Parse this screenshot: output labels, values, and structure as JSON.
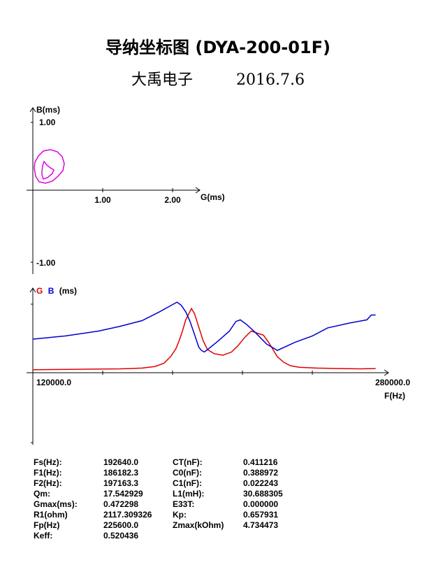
{
  "header": {
    "title": "导纳坐标图 (DYA-200-01F)",
    "company": "大禹电子",
    "date": "2016.7.6"
  },
  "chart_data": [
    {
      "type": "scatter",
      "title": "",
      "xlabel": "G(ms)",
      "ylabel": "B(ms)",
      "xlim": [
        -0.02,
        2.4
      ],
      "ylim": [
        -1.1,
        1.15
      ],
      "x_ticks": [
        "1.00",
        "2.00"
      ],
      "y_ticks": [
        "1.00",
        "-1.00"
      ],
      "grid": false,
      "series": [
        {
          "color": "#e000e0",
          "points": [
            [
              0.02,
              0.32
            ],
            [
              0.04,
              0.2
            ],
            [
              0.09,
              0.12
            ],
            [
              0.18,
              0.1
            ],
            [
              0.28,
              0.13
            ],
            [
              0.36,
              0.2
            ],
            [
              0.43,
              0.28
            ],
            [
              0.45,
              0.38
            ],
            [
              0.42,
              0.48
            ],
            [
              0.35,
              0.55
            ],
            [
              0.25,
              0.58
            ],
            [
              0.15,
              0.56
            ],
            [
              0.08,
              0.49
            ],
            [
              0.03,
              0.4
            ],
            [
              0.02,
              0.32
            ]
          ]
        },
        {
          "color": "#e000e0",
          "points": [
            [
              0.13,
              0.22
            ],
            [
              0.15,
              0.16
            ],
            [
              0.21,
              0.18
            ],
            [
              0.28,
              0.24
            ],
            [
              0.3,
              0.29
            ],
            [
              0.25,
              0.32
            ],
            [
              0.2,
              0.36
            ],
            [
              0.16,
              0.41
            ],
            [
              0.14,
              0.35
            ],
            [
              0.13,
              0.27
            ],
            [
              0.13,
              0.22
            ]
          ]
        }
      ]
    },
    {
      "type": "line",
      "title": "",
      "legend": [
        "G",
        "B",
        "(ms)"
      ],
      "xlabel": "F(Hz)",
      "xlim": [
        120000,
        280000
      ],
      "x_ticks": [
        "120000.0",
        "280000.0"
      ],
      "ylim": [
        0,
        1
      ],
      "grid": false,
      "series": [
        {
          "name": "G",
          "color": "#e00000",
          "x": [
            120000,
            140000,
            160000,
            170000,
            176000,
            180000,
            183000,
            185500,
            187000,
            188500,
            190000,
            192640,
            194000,
            196000,
            198000,
            200000,
            203000,
            207000,
            211000,
            214000,
            217000,
            220000,
            225600,
            228000,
            230000,
            232000,
            235000,
            238000,
            242000,
            250000,
            260000,
            270000,
            277000
          ],
          "y": [
            0.02,
            0.025,
            0.03,
            0.04,
            0.06,
            0.1,
            0.18,
            0.28,
            0.38,
            0.5,
            0.64,
            0.78,
            0.72,
            0.55,
            0.38,
            0.27,
            0.22,
            0.2,
            0.24,
            0.32,
            0.42,
            0.5,
            0.45,
            0.36,
            0.27,
            0.18,
            0.11,
            0.07,
            0.05,
            0.04,
            0.035,
            0.03,
            0.035
          ]
        },
        {
          "name": "B",
          "color": "#0000d0",
          "x": [
            120000,
            135000,
            150000,
            160000,
            170000,
            178000,
            182000,
            186000,
            188000,
            190000,
            192000,
            194000,
            196000,
            197200,
            198500,
            200000,
            205000,
            210000,
            213000,
            215000,
            218000,
            222000,
            227000,
            232000,
            240000,
            248000,
            255000,
            265000,
            273000,
            275000,
            277000
          ],
          "y": [
            0.4,
            0.44,
            0.5,
            0.56,
            0.63,
            0.74,
            0.8,
            0.86,
            0.82,
            0.74,
            0.62,
            0.46,
            0.3,
            0.26,
            0.24,
            0.27,
            0.38,
            0.5,
            0.62,
            0.64,
            0.58,
            0.48,
            0.34,
            0.26,
            0.36,
            0.44,
            0.54,
            0.6,
            0.64,
            0.7,
            0.7
          ]
        }
      ]
    }
  ],
  "params": [
    {
      "l1": "Fs(Hz):",
      "v1": "192640.0",
      "l2": "CT(nF):",
      "v2": "0.411216"
    },
    {
      "l1": "F1(Hz):",
      "v1": "186182.3",
      "l2": "C0(nF):",
      "v2": "0.388972"
    },
    {
      "l1": "F2(Hz):",
      "v1": "197163.3",
      "l2": "C1(nF):",
      "v2": "0.022243"
    },
    {
      "l1": "Qm:",
      "v1": "17.542929",
      "l2": "L1(mH):",
      "v2": "30.688305"
    },
    {
      "l1": "Gmax(ms):",
      "v1": "0.472298",
      "l2": "E33T:",
      "v2": "0.000000"
    },
    {
      "l1": "R1(ohm)",
      "v1": "2117.309326",
      "l2": "Kp:",
      "v2": "0.657931"
    },
    {
      "l1": "Fp(Hz)",
      "v1": "225600.0",
      "l2": "Zmax(kOhm)",
      "v2": "4.734473"
    },
    {
      "l1": "Keff:",
      "v1": "0.520436",
      "l2": "",
      "v2": ""
    }
  ]
}
